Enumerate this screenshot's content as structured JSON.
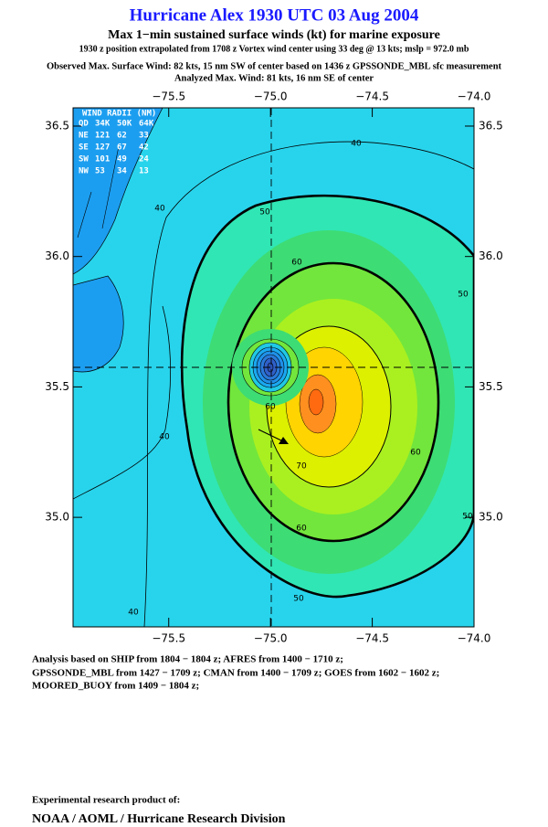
{
  "header": {
    "title": "Hurricane Alex 1930 UTC 03 Aug 2004",
    "subtitle": "Max 1−min sustained surface winds (kt) for marine exposure",
    "position_note": "1930 z position extrapolated from 1708 z Vortex wind center using 33 deg @ 13 kts; mslp = 972.0 mb",
    "observed": "Observed Max. Surface Wind: 82 kts, 15 nm SW of center based on 1436 z GPSSONDE_MBL sfc measurement",
    "analyzed": "Analyzed Max. Wind: 81 kts, 16 nm SE of center"
  },
  "map": {
    "xlim": [
      -75.97,
      -74.0
    ],
    "ylim": [
      34.58,
      36.57
    ],
    "xticks": [
      {
        "value": -75.5,
        "label": "−75.5"
      },
      {
        "value": -75.0,
        "label": "−75.0"
      },
      {
        "value": -74.5,
        "label": "−74.5"
      },
      {
        "value": -74.0,
        "label": "−74.0"
      }
    ],
    "yticks": [
      36.5,
      {
        "value": 36.0,
        "label": "36.0"
      },
      35.5,
      {
        "value": 35.0,
        "label": "35.0"
      }
    ],
    "contour_levels": [
      40,
      50,
      60,
      70
    ]
  },
  "wind_radii": {
    "title": "WIND RADII (NM)",
    "columns": [
      "QD",
      "34K",
      "50K",
      "64K"
    ],
    "rows": [
      [
        "NE",
        121,
        62,
        33
      ],
      [
        "SE",
        127,
        67,
        42
      ],
      [
        "SW",
        101,
        49,
        24
      ],
      [
        "NW",
        53,
        34,
        13
      ]
    ]
  },
  "analysis": [
    "Analysis based on  SHIP from 1804 − 1804 z;  AFRES from 1400 − 1710 z;",
    "GPSSONDE_MBL from 1427 − 1709 z;  CMAN from 1400 − 1709 z;  GOES from 1602 − 1602 z;",
    "MOORED_BUOY from 1409 − 1804 z;"
  ],
  "footer": {
    "note": "Experimental research product of:",
    "org": "NOAA / AOML / Hurricane Research Division"
  }
}
